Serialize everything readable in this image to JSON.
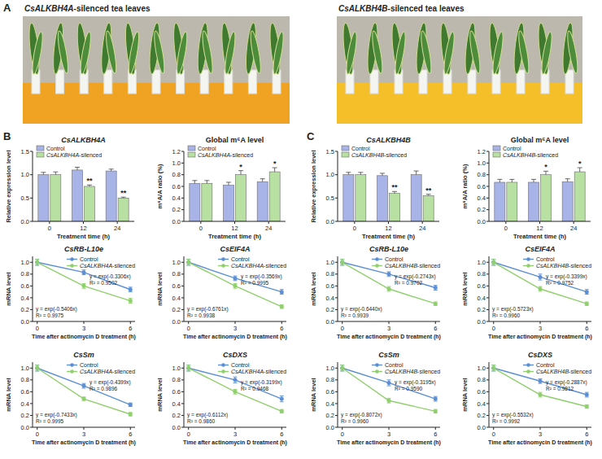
{
  "figure": {
    "panel_labels": [
      "A",
      "B",
      "C"
    ],
    "photo_titles": [
      "CsALKBH4A-silenced tea leaves",
      "CsALKBH4B-silenced tea leaves"
    ]
  },
  "chart_data": [
    {
      "type": "bar",
      "title": "CsALKBH4A",
      "x_label": "Treatment time (h)",
      "y_label": "Relative expression level",
      "categories": [
        "0",
        "12",
        "24"
      ],
      "series": [
        {
          "name": "Control",
          "color": "#a8b4e8",
          "values": [
            1.0,
            1.1,
            1.08
          ],
          "errors": [
            0.05,
            0.06,
            0.04
          ]
        },
        {
          "name": "CsALKBH4A-silenced",
          "color": "#b8e0a2",
          "values": [
            1.0,
            0.75,
            0.5
          ],
          "errors": [
            0.06,
            0.03,
            0.02
          ]
        }
      ],
      "annotations": [
        {
          "series": 1,
          "index": 1,
          "text": "**"
        },
        {
          "series": 1,
          "index": 2,
          "text": "**"
        }
      ],
      "ylim": [
        0,
        1.5
      ],
      "yticks": [
        {
          "value": 0,
          "label": "0.0"
        },
        {
          "value": 0.5,
          "label": "0.5"
        },
        {
          "value": 1,
          "label": "1.0"
        },
        {
          "value": 1.5,
          "label": "1.5"
        }
      ],
      "legend": "upper left"
    },
    {
      "type": "bar",
      "title": "Global m⁶A level",
      "x_label": "Treatment time (h)",
      "y_label": "m⁶A/A ratio (%)",
      "categories": [
        "0",
        "12",
        "24"
      ],
      "series": [
        {
          "name": "Control",
          "color": "#a8b4e8",
          "values": [
            0.65,
            0.62,
            0.68
          ],
          "errors": [
            0.05,
            0.05,
            0.05
          ]
        },
        {
          "name": "CsALKBH4A-silenced",
          "color": "#b8e0a2",
          "values": [
            0.65,
            0.8,
            0.85
          ],
          "errors": [
            0.05,
            0.07,
            0.07
          ]
        }
      ],
      "annotations": [
        {
          "series": 1,
          "index": 1,
          "text": "*"
        },
        {
          "series": 1,
          "index": 2,
          "text": "*"
        }
      ],
      "ylim": [
        0,
        1.2
      ],
      "yticks": [
        {
          "value": 0,
          "label": "0.0"
        },
        {
          "value": 0.2,
          "label": "0.2"
        },
        {
          "value": 0.4,
          "label": "0.4"
        },
        {
          "value": 0.6,
          "label": "0.6"
        },
        {
          "value": 0.8,
          "label": "0.8"
        },
        {
          "value": 1,
          "label": "1.0"
        },
        {
          "value": 1.2,
          "label": "1.2"
        }
      ],
      "legend": "upper left"
    },
    {
      "type": "line",
      "title": "CsRB-L10e",
      "x_label": "Time after actinomycin D treatment (h)",
      "y_label": "mRNA level",
      "x": [
        0,
        3,
        6
      ],
      "xlim": [
        -0.3,
        6.3
      ],
      "xticks": [
        0,
        3,
        6
      ],
      "ylim": [
        0,
        1.1
      ],
      "yticks": [
        {
          "value": 0,
          "label": "0.0"
        },
        {
          "value": 0.2,
          "label": "0.2"
        },
        {
          "value": 0.4,
          "label": "0.4"
        },
        {
          "value": 0.6,
          "label": "0.6"
        },
        {
          "value": 0.8,
          "label": "0.8"
        },
        {
          "value": 1,
          "label": "1.0"
        }
      ],
      "marker": "circle",
      "legend": "upper right",
      "series": [
        {
          "name": "Control",
          "color": "#5b8fd6",
          "values": [
            1.0,
            0.83,
            0.54
          ],
          "errors": [
            0.05,
            0.04,
            0.04
          ],
          "fit": "y = exp(-0.3306x)",
          "fit_r2": "R² = 0.9502"
        },
        {
          "name": "CsALKBH4A-silenced",
          "color": "#8fcf6c",
          "values": [
            1.0,
            0.6,
            0.35
          ],
          "errors": [
            0.05,
            0.04,
            0.04
          ],
          "fit": "y = exp(-0.5406x)",
          "fit_r2": "R² = 0.9975"
        }
      ]
    },
    {
      "type": "line",
      "title": "CsEIF4A",
      "x_label": "Time after actinomycin D treatment (h)",
      "y_label": "mRNA level",
      "x": [
        0,
        3,
        6
      ],
      "xlim": [
        -0.3,
        6.3
      ],
      "xticks": [
        0,
        3,
        6
      ],
      "ylim": [
        0,
        1.1
      ],
      "yticks": [
        {
          "value": 0,
          "label": "0.0"
        },
        {
          "value": 0.2,
          "label": "0.2"
        },
        {
          "value": 0.4,
          "label": "0.4"
        },
        {
          "value": 0.6,
          "label": "0.6"
        },
        {
          "value": 0.8,
          "label": "0.8"
        },
        {
          "value": 1,
          "label": "1.0"
        }
      ],
      "marker": "circle",
      "legend": "upper right",
      "series": [
        {
          "name": "Control",
          "color": "#5b8fd6",
          "values": [
            1.0,
            0.73,
            0.5
          ],
          "errors": [
            0.05,
            0.04,
            0.04
          ],
          "fit": "y = exp(-0.3569x)",
          "fit_r2": "R² = 0.9995"
        },
        {
          "name": "CsALKBH4A-silenced",
          "color": "#8fcf6c",
          "values": [
            1.0,
            0.6,
            0.25
          ],
          "errors": [
            0.05,
            0.04,
            0.03
          ],
          "fit": "y = exp(-0.6761x)",
          "fit_r2": "R² = 0.9938"
        }
      ]
    },
    {
      "type": "line",
      "title": "CsSm",
      "x_label": "Time after actinomycin D treatment (h)",
      "y_label": "mRNA level",
      "x": [
        0,
        3,
        6
      ],
      "xlim": [
        -0.3,
        6.3
      ],
      "xticks": [
        0,
        3,
        6
      ],
      "ylim": [
        0,
        1.1
      ],
      "yticks": [
        {
          "value": 0,
          "label": "0.0"
        },
        {
          "value": 0.2,
          "label": "0.2"
        },
        {
          "value": 0.4,
          "label": "0.4"
        },
        {
          "value": 0.6,
          "label": "0.6"
        },
        {
          "value": 0.8,
          "label": "0.8"
        },
        {
          "value": 1,
          "label": "1.0"
        }
      ],
      "marker": "circle",
      "legend": "upper right",
      "series": [
        {
          "name": "Control",
          "color": "#5b8fd6",
          "values": [
            1.0,
            0.7,
            0.38
          ],
          "errors": [
            0.05,
            0.04,
            0.03
          ],
          "fit": "y = exp(-0.4399x)",
          "fit_r2": "R² = 0.9896"
        },
        {
          "name": "CsALKBH4A-silenced",
          "color": "#8fcf6c",
          "values": [
            1.0,
            0.48,
            0.22
          ],
          "errors": [
            0.05,
            0.03,
            0.03
          ],
          "fit": "y = exp(-0.7433x)",
          "fit_r2": "R² = 0.9995"
        }
      ]
    },
    {
      "type": "line",
      "title": "CsDXS",
      "x_label": "Time after actinomycin D treatment (h)",
      "y_label": "mRNA level",
      "x": [
        0,
        3,
        6
      ],
      "xlim": [
        -0.3,
        6.3
      ],
      "xticks": [
        0,
        3,
        6
      ],
      "ylim": [
        0,
        1.1
      ],
      "yticks": [
        {
          "value": 0,
          "label": "0.0"
        },
        {
          "value": 0.2,
          "label": "0.2"
        },
        {
          "value": 0.4,
          "label": "0.4"
        },
        {
          "value": 0.6,
          "label": "0.6"
        },
        {
          "value": 0.8,
          "label": "0.8"
        },
        {
          "value": 1,
          "label": "1.0"
        }
      ],
      "marker": "circle",
      "legend": "upper right",
      "series": [
        {
          "name": "Control",
          "color": "#5b8fd6",
          "values": [
            1.0,
            0.8,
            0.48
          ],
          "errors": [
            0.05,
            0.05,
            0.05
          ],
          "fit": "y = exp(-0.3199x)",
          "fit_r2": "R² = 0.9468"
        },
        {
          "name": "CsALKBH4A-silenced",
          "color": "#8fcf6c",
          "values": [
            1.0,
            0.6,
            0.27
          ],
          "errors": [
            0.05,
            0.04,
            0.03
          ],
          "fit": "y = exp(-0.6112x)",
          "fit_r2": "R² = 0.9860"
        }
      ]
    },
    {
      "type": "bar",
      "title": "CsALKBH4B",
      "x_label": "Treatment time (h)",
      "y_label": "Relative expression level",
      "categories": [
        "0",
        "12",
        "24"
      ],
      "series": [
        {
          "name": "Control",
          "color": "#a8b4e8",
          "values": [
            1.0,
            0.98,
            1.0
          ],
          "errors": [
            0.05,
            0.05,
            0.08
          ]
        },
        {
          "name": "CsALKBH4B-silenced",
          "color": "#b8e0a2",
          "values": [
            1.0,
            0.6,
            0.55
          ],
          "errors": [
            0.05,
            0.04,
            0.03
          ]
        }
      ],
      "annotations": [
        {
          "series": 1,
          "index": 1,
          "text": "**"
        },
        {
          "series": 1,
          "index": 2,
          "text": "**"
        }
      ],
      "ylim": [
        0,
        1.5
      ],
      "yticks": [
        {
          "value": 0,
          "label": "0.0"
        },
        {
          "value": 0.5,
          "label": "0.5"
        },
        {
          "value": 1,
          "label": "1.0"
        },
        {
          "value": 1.5,
          "label": "1.5"
        }
      ],
      "legend": "upper left"
    },
    {
      "type": "bar",
      "title": "Global m⁶A level",
      "x_label": "Treatment time (h)",
      "y_label": "m⁶A/A ratio (%)",
      "categories": [
        "0",
        "12",
        "24"
      ],
      "series": [
        {
          "name": "Control",
          "color": "#a8b4e8",
          "values": [
            0.67,
            0.67,
            0.68
          ],
          "errors": [
            0.05,
            0.05,
            0.05
          ]
        },
        {
          "name": "CsALKBH4B-silenced",
          "color": "#b8e0a2",
          "values": [
            0.67,
            0.8,
            0.85
          ],
          "errors": [
            0.05,
            0.06,
            0.07
          ]
        }
      ],
      "annotations": [
        {
          "series": 1,
          "index": 1,
          "text": "*"
        },
        {
          "series": 1,
          "index": 2,
          "text": "*"
        }
      ],
      "ylim": [
        0,
        1.2
      ],
      "yticks": [
        {
          "value": 0,
          "label": "0.0"
        },
        {
          "value": 0.2,
          "label": "0.2"
        },
        {
          "value": 0.4,
          "label": "0.4"
        },
        {
          "value": 0.6,
          "label": "0.6"
        },
        {
          "value": 0.8,
          "label": "0.8"
        },
        {
          "value": 1,
          "label": "1.0"
        },
        {
          "value": 1.2,
          "label": "1.2"
        }
      ],
      "legend": "upper left"
    },
    {
      "type": "line",
      "title": "CsRB-L10e",
      "x_label": "Time after actinomycin D treatment (h)",
      "y_label": "mRNA level",
      "x": [
        0,
        3,
        6
      ],
      "xlim": [
        -0.3,
        6.3
      ],
      "xticks": [
        0,
        3,
        6
      ],
      "ylim": [
        0,
        1.1
      ],
      "yticks": [
        {
          "value": 0,
          "label": "0.0"
        },
        {
          "value": 0.2,
          "label": "0.2"
        },
        {
          "value": 0.4,
          "label": "0.4"
        },
        {
          "value": 0.6,
          "label": "0.6"
        },
        {
          "value": 0.8,
          "label": "0.8"
        },
        {
          "value": 1,
          "label": "1.0"
        }
      ],
      "marker": "circle",
      "legend": "upper right",
      "series": [
        {
          "name": "Control",
          "color": "#5b8fd6",
          "values": [
            1.0,
            0.8,
            0.57
          ],
          "errors": [
            0.05,
            0.04,
            0.04
          ],
          "fit": "y = exp(-0.2743x)",
          "fit_r2": "R² = 0.9702"
        },
        {
          "name": "CsALKBH4B-silenced",
          "color": "#8fcf6c",
          "values": [
            1.0,
            0.55,
            0.3
          ],
          "errors": [
            0.05,
            0.04,
            0.03
          ],
          "fit": "y = exp(-0.6440x)",
          "fit_r2": "R² = 0.9939"
        }
      ]
    },
    {
      "type": "line",
      "title": "CsEIF4A",
      "x_label": "Time after actinomycin D treatment (h)",
      "y_label": "mRNA level",
      "x": [
        0,
        3,
        6
      ],
      "xlim": [
        -0.3,
        6.3
      ],
      "xticks": [
        0,
        3,
        6
      ],
      "ylim": [
        0,
        1.1
      ],
      "yticks": [
        {
          "value": 0,
          "label": "0.0"
        },
        {
          "value": 0.2,
          "label": "0.2"
        },
        {
          "value": 0.4,
          "label": "0.4"
        },
        {
          "value": 0.6,
          "label": "0.6"
        },
        {
          "value": 0.8,
          "label": "0.8"
        },
        {
          "value": 1,
          "label": "1.0"
        }
      ],
      "marker": "circle",
      "legend": "upper right",
      "series": [
        {
          "name": "Control",
          "color": "#5b8fd6",
          "values": [
            1.0,
            0.75,
            0.5
          ],
          "errors": [
            0.05,
            0.05,
            0.04
          ],
          "fit": "y = exp(-0.3399x)",
          "fit_r2": "R² = 0.9752"
        },
        {
          "name": "CsALKBH4B-silenced",
          "color": "#8fcf6c",
          "values": [
            1.0,
            0.55,
            0.3
          ],
          "errors": [
            0.05,
            0.04,
            0.03
          ],
          "fit": "y = exp(-0.5723x)",
          "fit_r2": "R² = 0.9960"
        }
      ]
    },
    {
      "type": "line",
      "title": "CsSm",
      "x_label": "Time after actinomycin D treatment (h)",
      "y_label": "mRNA level",
      "x": [
        0,
        3,
        6
      ],
      "xlim": [
        -0.3,
        6.3
      ],
      "xticks": [
        0,
        3,
        6
      ],
      "ylim": [
        0,
        1.1
      ],
      "yticks": [
        {
          "value": 0,
          "label": "0.0"
        },
        {
          "value": 0.2,
          "label": "0.2"
        },
        {
          "value": 0.4,
          "label": "0.4"
        },
        {
          "value": 0.6,
          "label": "0.6"
        },
        {
          "value": 0.8,
          "label": "0.8"
        },
        {
          "value": 1,
          "label": "1.0"
        }
      ],
      "marker": "circle",
      "legend": "upper right",
      "series": [
        {
          "name": "Control",
          "color": "#5b8fd6",
          "values": [
            1.0,
            0.75,
            0.48
          ],
          "errors": [
            0.05,
            0.05,
            0.04
          ],
          "fit": "y = exp(-0.3195x)",
          "fit_r2": "R² = 0.9590"
        },
        {
          "name": "CsALKBH4B-silenced",
          "color": "#8fcf6c",
          "values": [
            1.0,
            0.45,
            0.27
          ],
          "errors": [
            0.05,
            0.04,
            0.03
          ],
          "fit": "y = exp(-0.8072x)",
          "fit_r2": "R² = 0.9960"
        }
      ]
    },
    {
      "type": "line",
      "title": "CsDXS",
      "x_label": "Time after actinomycin D treatment (h)",
      "y_label": "mRNA level",
      "x": [
        0,
        3,
        6
      ],
      "xlim": [
        -0.3,
        6.3
      ],
      "xticks": [
        0,
        3,
        6
      ],
      "ylim": [
        0,
        1.1
      ],
      "yticks": [
        {
          "value": 0,
          "label": "0.0"
        },
        {
          "value": 0.2,
          "label": "0.2"
        },
        {
          "value": 0.4,
          "label": "0.4"
        },
        {
          "value": 0.6,
          "label": "0.6"
        },
        {
          "value": 0.8,
          "label": "0.8"
        },
        {
          "value": 1,
          "label": "1.0"
        }
      ],
      "marker": "circle",
      "legend": "upper right",
      "series": [
        {
          "name": "Control",
          "color": "#5b8fd6",
          "values": [
            1.0,
            0.78,
            0.55
          ],
          "errors": [
            0.05,
            0.04,
            0.04
          ],
          "fit": "y = exp(-0.2887x)",
          "fit_r2": "R² = 0.9812"
        },
        {
          "name": "CsALKBH4B-silenced",
          "color": "#8fcf6c",
          "values": [
            1.0,
            0.55,
            0.35
          ],
          "errors": [
            0.05,
            0.04,
            0.03
          ],
          "fit": "y = exp(-0.5532x)",
          "fit_r2": "R² = 0.9992"
        }
      ]
    }
  ]
}
